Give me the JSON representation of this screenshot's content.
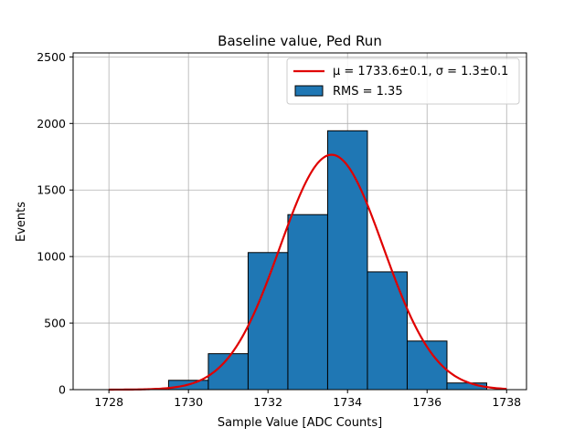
{
  "chart_data": {
    "type": "bar",
    "title": "Baseline value, Ped Run",
    "xlabel": "Sample Value [ADC Counts]",
    "ylabel": "Events",
    "xlim": [
      1727.1,
      1738.5
    ],
    "ylim": [
      0,
      2530
    ],
    "xticks": [
      1728,
      1730,
      1732,
      1734,
      1736,
      1738
    ],
    "yticks": [
      0,
      500,
      1000,
      1500,
      2000,
      2500
    ],
    "grid": true,
    "legend_position": "top-right",
    "bar_color": "#1f77b4",
    "bin_width": 1,
    "bins": [
      {
        "x": 1730,
        "count": 70
      },
      {
        "x": 1731,
        "count": 270
      },
      {
        "x": 1732,
        "count": 1030
      },
      {
        "x": 1733,
        "count": 1315
      },
      {
        "x": 1734,
        "count": 1945
      },
      {
        "x": 1735,
        "count": 885
      },
      {
        "x": 1736,
        "count": 365
      },
      {
        "x": 1737,
        "count": 50
      }
    ],
    "fit": {
      "color": "#e00000",
      "mu": 1733.6,
      "sigma": 1.3,
      "amplitude": 1765,
      "x_range": [
        1728,
        1738
      ]
    },
    "legend": {
      "fit_label": "μ = 1733.6±0.1, σ = 1.3±0.1",
      "hist_label": "RMS = 1.35"
    }
  }
}
